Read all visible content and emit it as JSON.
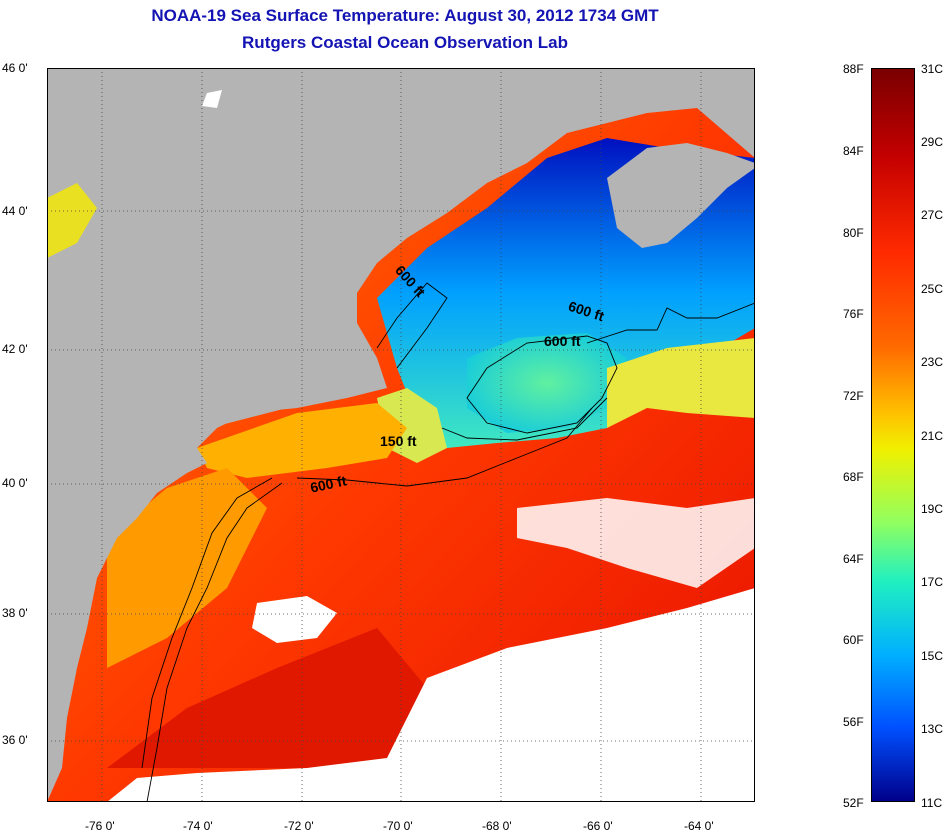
{
  "title": {
    "line1": "NOAA-19 Sea Surface Temperature:  August 30, 2012 1734 GMT",
    "line2": "Rutgers Coastal Ocean Observation Lab"
  },
  "lat_labels": [
    "46 0'",
    "44 0'",
    "42 0'",
    "40 0'",
    "38 0'",
    "36 0'"
  ],
  "lon_labels": [
    "-76 0'",
    "-74 0'",
    "-72 0'",
    "-70 0'",
    "-68 0'",
    "-66 0'",
    "-64 0'"
  ],
  "contour_labels": [
    "600 ft",
    "600 ft",
    "600 ft",
    "150 ft",
    "600 ft"
  ],
  "colorbar": {
    "fahrenheit": [
      "88F",
      "84F",
      "80F",
      "76F",
      "72F",
      "68F",
      "64F",
      "60F",
      "56F",
      "52F"
    ],
    "celsius": [
      "31C",
      "29C",
      "27C",
      "25C",
      "23C",
      "21C",
      "19C",
      "17C",
      "15C",
      "13C",
      "11C"
    ]
  },
  "colors": {
    "title": "#1414b4",
    "land": "#b4b4b4",
    "cloud": "#ffffff",
    "warm": "#ff3000",
    "cold": "#0020d0"
  }
}
